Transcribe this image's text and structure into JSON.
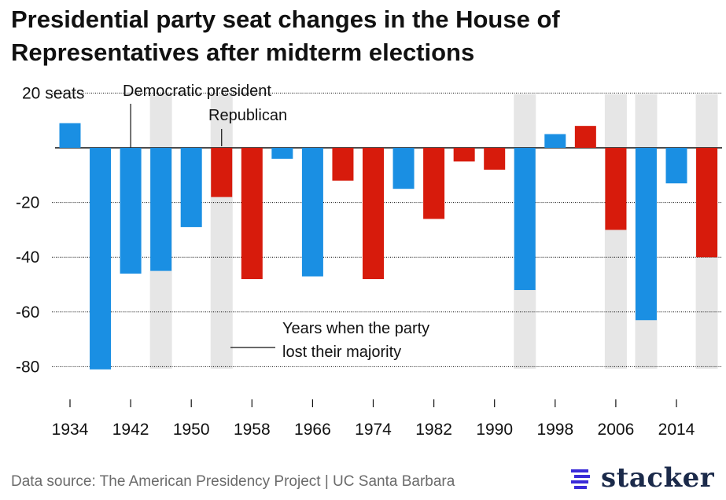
{
  "title": "Presidential party seat changes in the House of Representatives after midterm elections",
  "footer": {
    "source": "Data source: The American Presidency Project | UC Santa Barbara",
    "brand": "stacker"
  },
  "annotations": {
    "democratic": "Democratic president",
    "republican": "Republican",
    "majority_line1": "Years when the party",
    "majority_line2": "lost their majority"
  },
  "chart_data": {
    "type": "bar",
    "x": [
      1934,
      1938,
      1942,
      1946,
      1950,
      1954,
      1958,
      1962,
      1966,
      1970,
      1974,
      1978,
      1982,
      1986,
      1990,
      1994,
      1998,
      2002,
      2006,
      2010,
      2014,
      2018
    ],
    "values": [
      9,
      -81,
      -46,
      -45,
      -29,
      -18,
      -48,
      -4,
      -47,
      -12,
      -48,
      -15,
      -26,
      -5,
      -8,
      -52,
      5,
      8,
      -30,
      -63,
      -13,
      -40
    ],
    "party": [
      "D",
      "D",
      "D",
      "D",
      "D",
      "R",
      "R",
      "D",
      "D",
      "R",
      "R",
      "D",
      "R",
      "R",
      "R",
      "D",
      "D",
      "R",
      "R",
      "D",
      "D",
      "R"
    ],
    "lost_majority": [
      1946,
      1954,
      1994,
      2006,
      2010,
      2018
    ],
    "xtick_labels": [
      "1934",
      "1942",
      "1950",
      "1958",
      "1966",
      "1974",
      "1982",
      "1990",
      "1998",
      "2006",
      "2014"
    ],
    "yticks": [
      20,
      0,
      -20,
      -40,
      -60,
      -80
    ],
    "ytick_labels": [
      "20 seats",
      "",
      "-20",
      "-40",
      "-60",
      "-80"
    ],
    "ylim": [
      -81,
      20
    ],
    "grid": true,
    "colors": {
      "democratic": "#1a8fe3",
      "republican": "#d71b0c",
      "lost_majority_band": "#e6e6e6",
      "axis": "#111111",
      "grid": "#111111"
    }
  }
}
